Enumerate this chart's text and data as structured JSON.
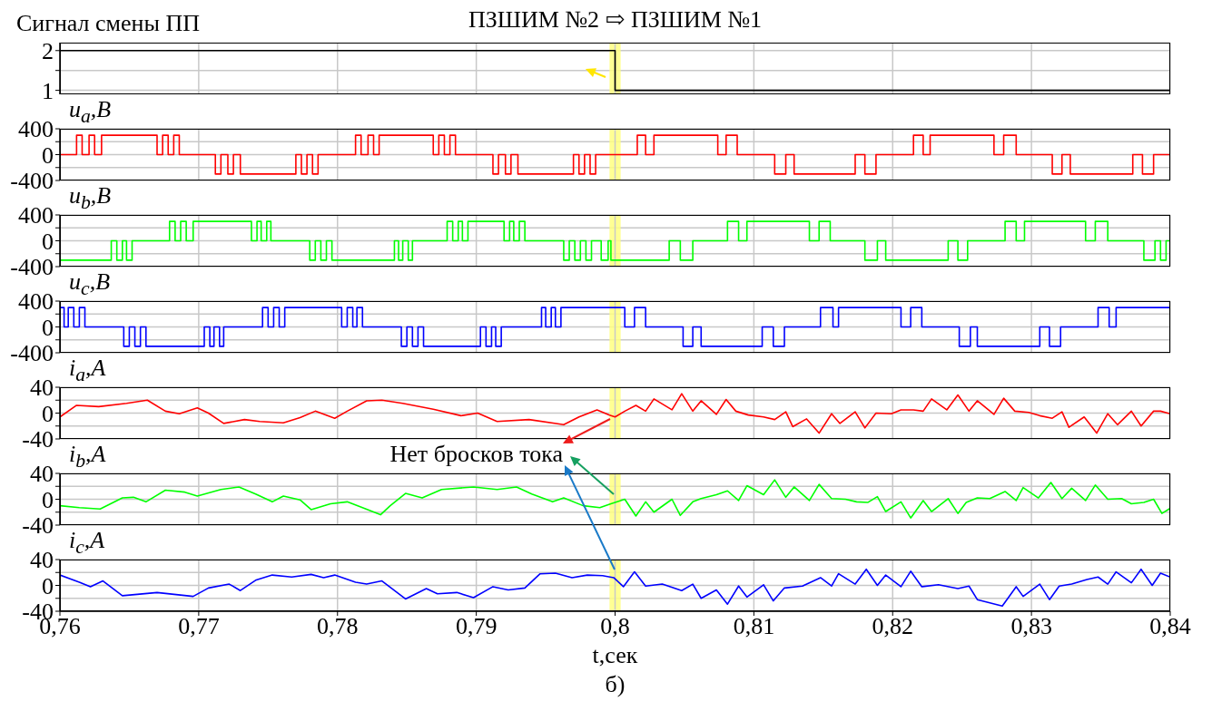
{
  "chart_data": [
    {
      "type": "step",
      "title": "ПЗШИМ №2 ⇨ ПЗШИМ №1",
      "ylabel": "Сигнал смены ПП",
      "xlim": [
        0.76,
        0.84
      ],
      "xticks": [
        {
          "value": 0.76,
          "label": null
        },
        {
          "value": 0.77,
          "label": null
        },
        {
          "value": 0.78,
          "label": null
        },
        {
          "value": 0.79,
          "label": null
        },
        {
          "value": 0.8,
          "label": null
        },
        {
          "value": 0.81,
          "label": null
        },
        {
          "value": 0.82,
          "label": null
        },
        {
          "value": 0.83,
          "label": null
        },
        {
          "value": 0.84,
          "label": null
        }
      ],
      "ylim": [
        0.9,
        2.2
      ],
      "yticks": [
        1,
        {
          "value": 1.5,
          "label": null
        },
        2
      ],
      "grid": true,
      "tick_labels": "y",
      "bands": [
        {
          "axis": "x",
          "from": 0.7996,
          "to": 0.8004,
          "color": "#ffff80"
        }
      ],
      "series": [
        {
          "color": "#000000",
          "x": [
            0.76,
            0.8,
            0.84
          ],
          "values": [
            2,
            1,
            1
          ]
        }
      ]
    },
    {
      "type": "step",
      "ylabel": "u$_{a}$,В",
      "xlim": [
        0.76,
        0.84
      ],
      "xticks": [
        {
          "value": 0.76,
          "label": null
        },
        {
          "value": 0.77,
          "label": null
        },
        {
          "value": 0.78,
          "label": null
        },
        {
          "value": 0.79,
          "label": null
        },
        {
          "value": 0.8,
          "label": null
        },
        {
          "value": 0.81,
          "label": null
        },
        {
          "value": 0.82,
          "label": null
        },
        {
          "value": 0.83,
          "label": null
        },
        {
          "value": 0.84,
          "label": null
        }
      ],
      "ylim": [
        -400,
        400
      ],
      "yticks": [
        -400,
        {
          "value": -200,
          "label": null
        },
        0,
        {
          "value": 200,
          "label": null
        },
        400
      ],
      "grid": true,
      "tick_labels": "y",
      "bands": [
        {
          "axis": "x",
          "from": 0.7996,
          "to": 0.8004,
          "color": "#ffff80"
        }
      ],
      "series": [
        {
          "color": "#ff0000",
          "x": [
            0.76,
            0.7612,
            0.7616,
            0.7621,
            0.7625,
            0.763,
            0.767,
            0.7674,
            0.7678,
            0.7682,
            0.7686,
            0.7712,
            0.7716,
            0.7721,
            0.7725,
            0.773,
            0.777,
            0.7774,
            0.7778,
            0.7782,
            0.7786,
            0.7813,
            0.7817,
            0.7822,
            0.7826,
            0.783,
            0.7869,
            0.7873,
            0.7877,
            0.7881,
            0.7885,
            0.7912,
            0.7916,
            0.7921,
            0.7925,
            0.793,
            0.797,
            0.7974,
            0.7978,
            0.7982,
            0.7986,
            0.8016,
            0.8022,
            0.8028,
            0.8074,
            0.808,
            0.8088,
            0.8115,
            0.8123,
            0.8129,
            0.8173,
            0.818,
            0.8188,
            0.8215,
            0.8222,
            0.8227,
            0.8273,
            0.828,
            0.8289,
            0.8315,
            0.8322,
            0.8328,
            0.8373,
            0.838,
            0.8388,
            0.84
          ],
          "values": [
            0,
            300,
            0,
            300,
            0,
            300,
            0,
            300,
            0,
            300,
            0,
            -300,
            0,
            -300,
            0,
            -300,
            0,
            -300,
            0,
            -300,
            0,
            300,
            0,
            300,
            0,
            300,
            0,
            300,
            0,
            300,
            0,
            -300,
            0,
            -300,
            0,
            -300,
            0,
            -300,
            0,
            -300,
            0,
            300,
            0,
            300,
            0,
            300,
            0,
            -300,
            0,
            -300,
            0,
            -300,
            0,
            300,
            0,
            300,
            0,
            300,
            0,
            -300,
            0,
            -300,
            0,
            -300,
            0,
            0
          ]
        }
      ]
    },
    {
      "type": "step",
      "ylabel": "u$_{b}$,В",
      "xlim": [
        0.76,
        0.84
      ],
      "xticks": [
        {
          "value": 0.76,
          "label": null
        },
        {
          "value": 0.77,
          "label": null
        },
        {
          "value": 0.78,
          "label": null
        },
        {
          "value": 0.79,
          "label": null
        },
        {
          "value": 0.8,
          "label": null
        },
        {
          "value": 0.81,
          "label": null
        },
        {
          "value": 0.82,
          "label": null
        },
        {
          "value": 0.83,
          "label": null
        },
        {
          "value": 0.84,
          "label": null
        }
      ],
      "ylim": [
        -400,
        400
      ],
      "yticks": [
        -400,
        {
          "value": -200,
          "label": null
        },
        0,
        {
          "value": 200,
          "label": null
        },
        400
      ],
      "grid": true,
      "tick_labels": "y",
      "bands": [
        {
          "axis": "x",
          "from": 0.7996,
          "to": 0.8004,
          "color": "#ffff80"
        }
      ],
      "series": [
        {
          "color": "#00ff00",
          "x": [
            0.76,
            0.7637,
            0.7641,
            0.7645,
            0.7648,
            0.7652,
            0.7679,
            0.7683,
            0.7687,
            0.7691,
            0.7696,
            0.7738,
            0.7742,
            0.7745,
            0.7749,
            0.7752,
            0.778,
            0.7784,
            0.7788,
            0.7792,
            0.7796,
            0.7841,
            0.7844,
            0.7847,
            0.7851,
            0.7854,
            0.7879,
            0.7883,
            0.7887,
            0.789,
            0.7894,
            0.792,
            0.7924,
            0.7927,
            0.7931,
            0.7935,
            0.7963,
            0.7967,
            0.7971,
            0.7975,
            0.7979,
            0.7983,
            0.799,
            0.7995,
            0.7997,
            0.8039,
            0.8047,
            0.8056,
            0.8081,
            0.8089,
            0.8095,
            0.814,
            0.8147,
            0.8155,
            0.818,
            0.8189,
            0.8195,
            0.824,
            0.8247,
            0.8254,
            0.8281,
            0.8289,
            0.8295,
            0.8339,
            0.8346,
            0.8355,
            0.8381,
            0.8389,
            0.8393,
            0.8397,
            0.84
          ],
          "values": [
            -300,
            0,
            -300,
            0,
            -300,
            0,
            300,
            0,
            300,
            0,
            300,
            0,
            300,
            0,
            300,
            0,
            -300,
            0,
            -300,
            0,
            -300,
            0,
            -300,
            0,
            -300,
            0,
            300,
            0,
            300,
            0,
            300,
            0,
            300,
            0,
            300,
            0,
            -300,
            0,
            -300,
            0,
            -300,
            0,
            -300,
            0,
            -300,
            0,
            -300,
            0,
            300,
            0,
            300,
            0,
            300,
            0,
            -300,
            0,
            -300,
            0,
            -300,
            0,
            300,
            0,
            300,
            0,
            300,
            0,
            -300,
            0,
            -300,
            0,
            0
          ]
        }
      ]
    },
    {
      "type": "step",
      "ylabel": "u$_{c}$,В",
      "xlim": [
        0.76,
        0.84
      ],
      "xticks": [
        {
          "value": 0.76,
          "label": null
        },
        {
          "value": 0.77,
          "label": null
        },
        {
          "value": 0.78,
          "label": null
        },
        {
          "value": 0.79,
          "label": null
        },
        {
          "value": 0.8,
          "label": null
        },
        {
          "value": 0.81,
          "label": null
        },
        {
          "value": 0.82,
          "label": null
        },
        {
          "value": 0.83,
          "label": null
        },
        {
          "value": 0.84,
          "label": null
        }
      ],
      "ylim": [
        -400,
        400
      ],
      "yticks": [
        -400,
        {
          "value": -200,
          "label": null
        },
        0,
        {
          "value": 200,
          "label": null
        },
        400
      ],
      "grid": true,
      "tick_labels": "y",
      "bands": [
        {
          "axis": "x",
          "from": 0.7996,
          "to": 0.8004,
          "color": "#ffff80"
        }
      ],
      "series": [
        {
          "color": "#0000ff",
          "x": [
            0.76,
            0.7603,
            0.7606,
            0.761,
            0.7614,
            0.7618,
            0.7646,
            0.765,
            0.7654,
            0.7658,
            0.7662,
            0.7704,
            0.7708,
            0.7711,
            0.7715,
            0.7718,
            0.7746,
            0.775,
            0.7754,
            0.7758,
            0.7762,
            0.7803,
            0.7807,
            0.7811,
            0.7814,
            0.7818,
            0.7846,
            0.785,
            0.7854,
            0.7858,
            0.7862,
            0.7903,
            0.7907,
            0.7911,
            0.7914,
            0.7918,
            0.7947,
            0.795,
            0.7954,
            0.7957,
            0.7961,
            0.8007,
            0.8014,
            0.8022,
            0.8049,
            0.8056,
            0.8062,
            0.8106,
            0.8114,
            0.8122,
            0.8148,
            0.8157,
            0.8161,
            0.8206,
            0.8213,
            0.8221,
            0.8248,
            0.8256,
            0.8261,
            0.8306,
            0.8313,
            0.8321,
            0.8348,
            0.8356,
            0.8361,
            0.84
          ],
          "values": [
            300,
            0,
            300,
            0,
            300,
            0,
            -300,
            0,
            -300,
            0,
            -300,
            0,
            -300,
            0,
            -300,
            0,
            300,
            0,
            300,
            0,
            300,
            0,
            300,
            0,
            300,
            0,
            -300,
            0,
            -300,
            0,
            -300,
            0,
            -300,
            0,
            -300,
            0,
            300,
            0,
            300,
            0,
            300,
            0,
            300,
            0,
            -300,
            0,
            -300,
            0,
            -300,
            0,
            300,
            0,
            300,
            0,
            300,
            0,
            -300,
            0,
            -300,
            0,
            -300,
            0,
            300,
            0,
            300,
            300
          ]
        }
      ]
    },
    {
      "type": "line",
      "ylabel": "i$_{a}$,A",
      "xlim": [
        0.76,
        0.84
      ],
      "xticks": [
        {
          "value": 0.76,
          "label": null
        },
        {
          "value": 0.77,
          "label": null
        },
        {
          "value": 0.78,
          "label": null
        },
        {
          "value": 0.79,
          "label": null
        },
        {
          "value": 0.8,
          "label": null
        },
        {
          "value": 0.81,
          "label": null
        },
        {
          "value": 0.82,
          "label": null
        },
        {
          "value": 0.83,
          "label": null
        },
        {
          "value": 0.84,
          "label": null
        }
      ],
      "ylim": [
        -40,
        40
      ],
      "yticks": [
        -40,
        {
          "value": -20,
          "label": null
        },
        0,
        {
          "value": 20,
          "label": null
        },
        40
      ],
      "grid": true,
      "tick_labels": "y",
      "bands": [
        {
          "axis": "x",
          "from": 0.7996,
          "to": 0.8004,
          "color": "#ffff80"
        }
      ],
      "series": [
        {
          "color": "#ff0000",
          "x": [
            0.76,
            0.7612,
            0.7628,
            0.7648,
            0.7663,
            0.7676,
            0.7686,
            0.7699,
            0.7707,
            0.7718,
            0.7733,
            0.7744,
            0.7761,
            0.7773,
            0.7784,
            0.7798,
            0.7807,
            0.7821,
            0.7832,
            0.7847,
            0.7869,
            0.7889,
            0.7901,
            0.7915,
            0.7938,
            0.7963,
            0.7974,
            0.7987,
            0.7996,
            0.8,
            0.8007,
            0.8015,
            0.8022,
            0.8028,
            0.8041,
            0.8048,
            0.8056,
            0.8062,
            0.8073,
            0.808,
            0.8087,
            0.8096,
            0.8107,
            0.8115,
            0.8123,
            0.8128,
            0.8138,
            0.8147,
            0.8156,
            0.8162,
            0.8173,
            0.818,
            0.8188,
            0.8199,
            0.8206,
            0.8215,
            0.8222,
            0.8228,
            0.8239,
            0.8247,
            0.8255,
            0.8261,
            0.8273,
            0.828,
            0.8288,
            0.8298,
            0.8306,
            0.8315,
            0.8322,
            0.8327,
            0.8338,
            0.8347,
            0.8355,
            0.8362,
            0.8372,
            0.8379,
            0.8388,
            0.8393,
            0.84
          ],
          "values": [
            -6,
            12,
            10,
            15,
            20,
            3,
            -1,
            8,
            0,
            -16,
            -10,
            -13,
            -15,
            -7,
            3,
            -8,
            3,
            19,
            20,
            15,
            6,
            -4,
            0,
            -13,
            -10,
            -18,
            -6,
            5,
            -3,
            -6,
            3,
            12,
            3,
            22,
            5,
            30,
            3,
            19,
            -2,
            21,
            3,
            -3,
            -6,
            -10,
            2,
            -21,
            -9,
            -31,
            -1,
            -16,
            2,
            -23,
            0,
            -1,
            5,
            5,
            3,
            22,
            5,
            28,
            3,
            19,
            -2,
            23,
            3,
            1,
            -4,
            -8,
            2,
            -22,
            -6,
            -31,
            -1,
            -18,
            3,
            -20,
            3,
            3,
            -1
          ]
        }
      ]
    },
    {
      "type": "line",
      "ylabel": "i$_{b}$,A",
      "annotations": [
        "Нет бросков тока"
      ],
      "xlim": [
        0.76,
        0.84
      ],
      "xticks": [
        {
          "value": 0.76,
          "label": null
        },
        {
          "value": 0.77,
          "label": null
        },
        {
          "value": 0.78,
          "label": null
        },
        {
          "value": 0.79,
          "label": null
        },
        {
          "value": 0.8,
          "label": null
        },
        {
          "value": 0.81,
          "label": null
        },
        {
          "value": 0.82,
          "label": null
        },
        {
          "value": 0.83,
          "label": null
        },
        {
          "value": 0.84,
          "label": null
        }
      ],
      "ylim": [
        -40,
        40
      ],
      "yticks": [
        -40,
        {
          "value": -20,
          "label": null
        },
        0,
        {
          "value": 20,
          "label": null
        },
        40
      ],
      "grid": true,
      "tick_labels": "y",
      "bands": [
        {
          "axis": "x",
          "from": 0.7996,
          "to": 0.8004,
          "color": "#ffff80"
        }
      ],
      "series": [
        {
          "color": "#00ff00",
          "x": [
            0.76,
            0.7614,
            0.7629,
            0.7645,
            0.7653,
            0.7662,
            0.7676,
            0.769,
            0.7699,
            0.7716,
            0.7729,
            0.7741,
            0.7753,
            0.7761,
            0.7773,
            0.7781,
            0.7795,
            0.7807,
            0.7818,
            0.7831,
            0.7838,
            0.7849,
            0.7861,
            0.7875,
            0.7898,
            0.7915,
            0.7929,
            0.794,
            0.7955,
            0.7963,
            0.7977,
            0.7989,
            0.7997,
            0.8,
            0.8007,
            0.8015,
            0.8022,
            0.8028,
            0.8041,
            0.8047,
            0.8056,
            0.8062,
            0.8073,
            0.8081,
            0.8089,
            0.8095,
            0.8107,
            0.8115,
            0.8123,
            0.8129,
            0.814,
            0.8147,
            0.8156,
            0.8166,
            0.8174,
            0.8182,
            0.8189,
            0.8195,
            0.8206,
            0.8213,
            0.8222,
            0.8228,
            0.824,
            0.8247,
            0.8253,
            0.8261,
            0.827,
            0.8281,
            0.8289,
            0.8294,
            0.8305,
            0.8314,
            0.8322,
            0.8329,
            0.8339,
            0.8346,
            0.8355,
            0.8365,
            0.8372,
            0.8381,
            0.8388,
            0.8394,
            0.84
          ],
          "values": [
            -10,
            -13,
            -15,
            2,
            3,
            -4,
            14,
            11,
            5,
            15,
            19,
            8,
            -4,
            5,
            -1,
            -16,
            -7,
            -4,
            -13,
            -24,
            -10,
            9,
            2,
            15,
            19,
            15,
            19,
            8,
            -4,
            2,
            -10,
            -13,
            -7,
            -5,
            0,
            -26,
            -4,
            -20,
            0,
            -25,
            -4,
            1,
            7,
            13,
            -2,
            21,
            7,
            30,
            3,
            19,
            -2,
            23,
            1,
            0,
            -4,
            -5,
            4,
            -19,
            -4,
            -29,
            -2,
            -19,
            1,
            -22,
            -5,
            2,
            1,
            12,
            -2,
            18,
            2,
            26,
            1,
            17,
            -2,
            22,
            0,
            1,
            -7,
            -5,
            0,
            -22,
            -14
          ]
        }
      ]
    },
    {
      "type": "line",
      "ylabel": "i$_{c}$,A",
      "xlabel": "t,сек",
      "annotations": [
        "б)"
      ],
      "xlim": [
        0.76,
        0.84
      ],
      "xticks": [
        {
          "value": 0.76,
          "label": "0,76"
        },
        {
          "value": 0.77,
          "label": "0,77"
        },
        {
          "value": 0.78,
          "label": "0,78"
        },
        {
          "value": 0.79,
          "label": "0,79"
        },
        {
          "value": 0.8,
          "label": "0,8"
        },
        {
          "value": 0.81,
          "label": "0,81"
        },
        {
          "value": 0.82,
          "label": "0,82"
        },
        {
          "value": 0.83,
          "label": "0,83"
        },
        {
          "value": 0.84,
          "label": "0,84"
        }
      ],
      "ylim": [
        -40,
        40
      ],
      "yticks": [
        -40,
        {
          "value": -20,
          "label": null
        },
        0,
        {
          "value": 20,
          "label": null
        },
        40
      ],
      "grid": true,
      "bands": [
        {
          "axis": "x",
          "from": 0.7996,
          "to": 0.8004,
          "color": "#ffff80"
        }
      ],
      "series": [
        {
          "color": "#0000ff",
          "x": [
            0.76,
            0.7614,
            0.7622,
            0.7631,
            0.7645,
            0.767,
            0.7696,
            0.7707,
            0.7722,
            0.773,
            0.7741,
            0.7753,
            0.7767,
            0.7781,
            0.779,
            0.7798,
            0.7813,
            0.7821,
            0.7832,
            0.7849,
            0.7864,
            0.7872,
            0.7886,
            0.7898,
            0.7912,
            0.7923,
            0.7935,
            0.7946,
            0.7957,
            0.7969,
            0.798,
            0.7991,
            0.7999,
            0.8006,
            0.8014,
            0.8022,
            0.8034,
            0.8048,
            0.8056,
            0.8062,
            0.8073,
            0.8081,
            0.8089,
            0.8095,
            0.8107,
            0.8114,
            0.8122,
            0.8135,
            0.8148,
            0.8156,
            0.8161,
            0.8173,
            0.8181,
            0.8189,
            0.8195,
            0.8206,
            0.8213,
            0.8221,
            0.8233,
            0.8247,
            0.8255,
            0.8261,
            0.8279,
            0.8289,
            0.8294,
            0.8306,
            0.8313,
            0.832,
            0.8329,
            0.834,
            0.8348,
            0.8355,
            0.8361,
            0.8372,
            0.8379,
            0.8387,
            0.8393,
            0.84
          ],
          "values": [
            16,
            5,
            -2,
            7,
            -16,
            -11,
            -17,
            -4,
            2,
            -8,
            8,
            16,
            13,
            17,
            12,
            16,
            5,
            2,
            7,
            -21,
            -5,
            -13,
            -11,
            -19,
            -2,
            -7,
            -4,
            18,
            19,
            12,
            16,
            15,
            12,
            -2,
            21,
            -1,
            2,
            -8,
            2,
            -20,
            -7,
            -29,
            -1,
            -18,
            1,
            -24,
            -4,
            -1,
            12,
            -1,
            18,
            2,
            25,
            0,
            16,
            -2,
            22,
            -2,
            1,
            -5,
            -1,
            -22,
            -32,
            -2,
            -17,
            2,
            -22,
            -1,
            2,
            9,
            13,
            2,
            21,
            4,
            25,
            0,
            19,
            13
          ]
        }
      ]
    }
  ]
}
